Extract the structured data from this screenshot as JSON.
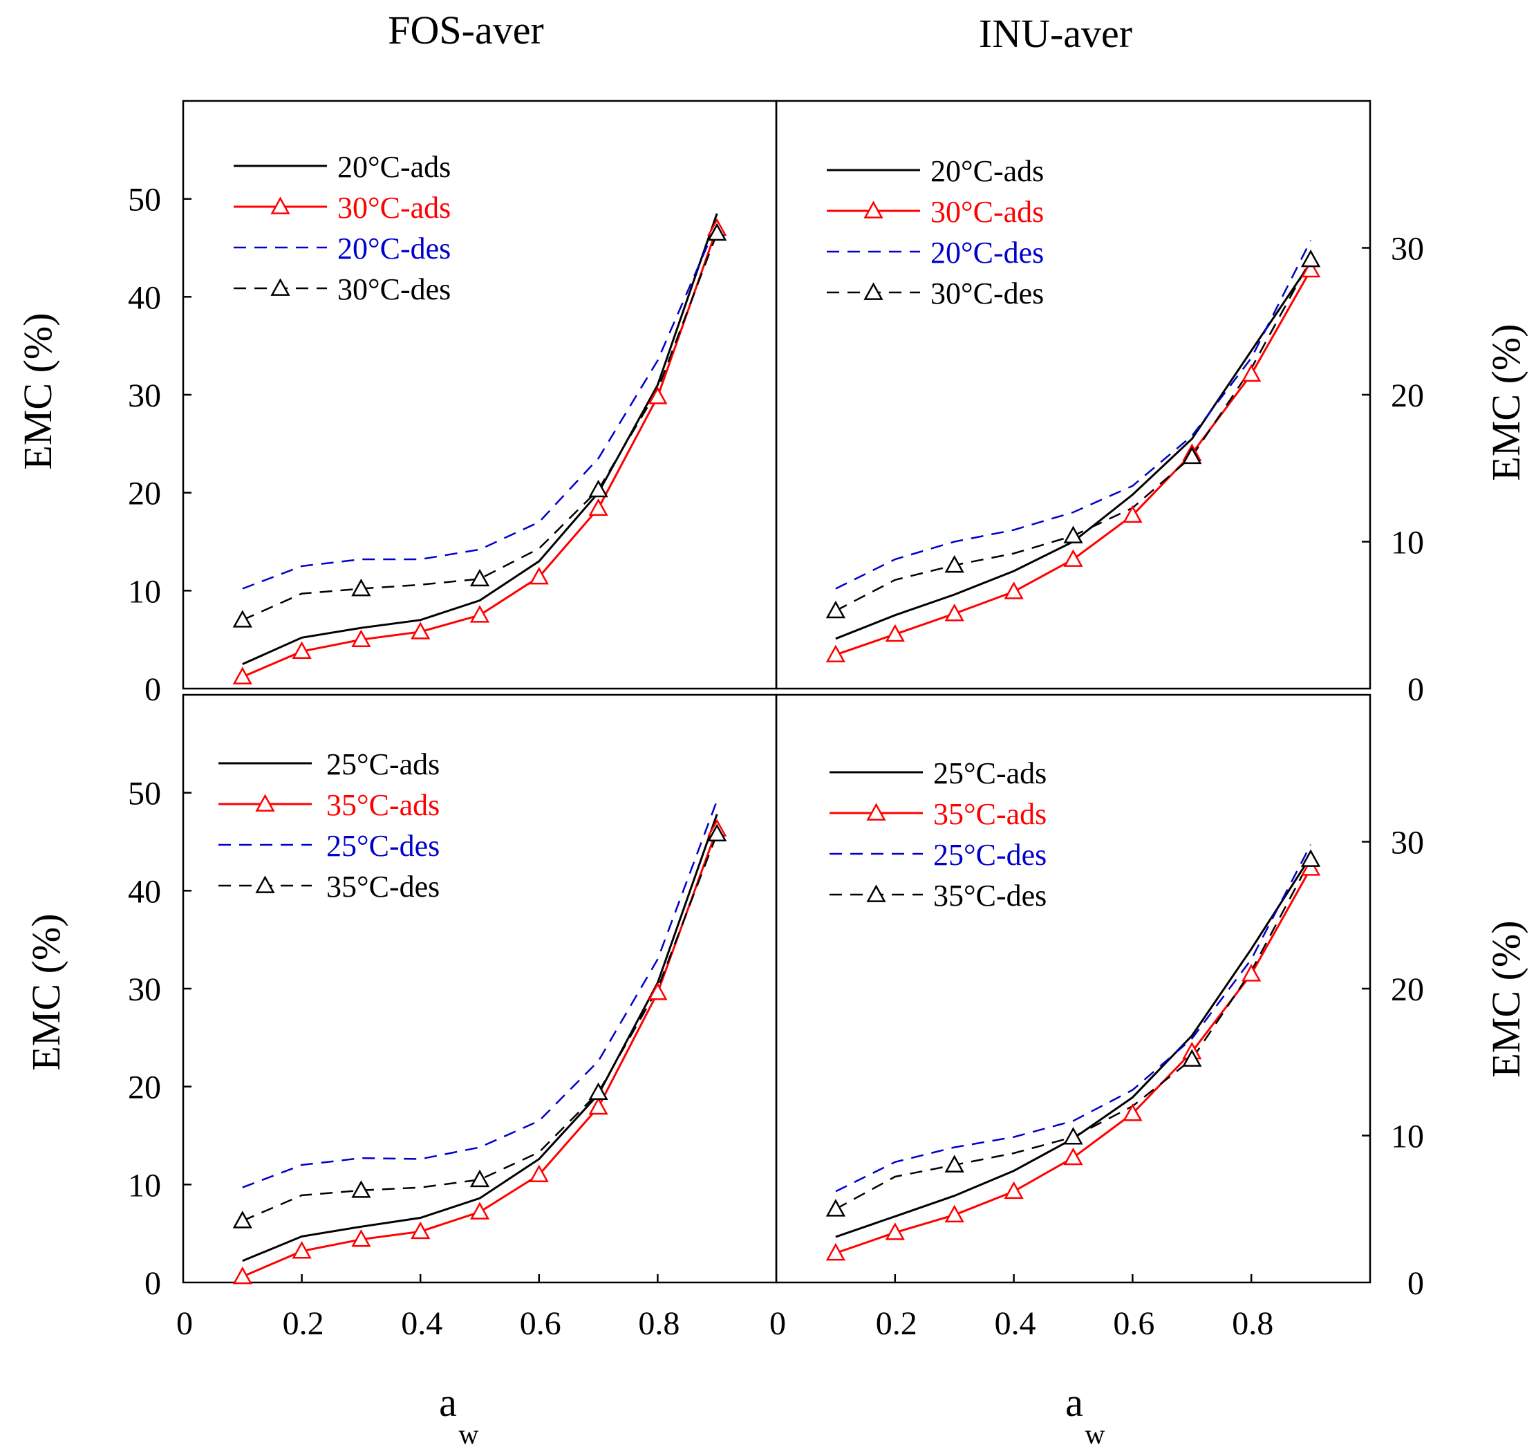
{
  "titles": {
    "left": "FOS-aver",
    "right": "INU-aver"
  },
  "axis": {
    "ylabel": "EMC (%)",
    "xlabel_main": "a",
    "xlabel_sub": "w",
    "x_ticks": [
      "0",
      "0.2",
      "0.4",
      "0.6",
      "0.8"
    ],
    "left_y_ticks": [
      "0",
      "10",
      "20",
      "30",
      "40",
      "50"
    ],
    "right_y_ticks": [
      "0",
      "10",
      "20",
      "30"
    ]
  },
  "colors": {
    "black": "#000000",
    "red": "#ff0000",
    "blue": "#0000cc"
  },
  "chart_data": [
    {
      "type": "line",
      "panel": "top-left",
      "title": "FOS-aver",
      "xlabel": "a_w",
      "ylabel": "EMC (%)",
      "xlim": [
        0,
        1
      ],
      "ylim": [
        0,
        60
      ],
      "x": [
        0.1,
        0.2,
        0.3,
        0.4,
        0.5,
        0.6,
        0.7,
        0.8,
        0.9
      ],
      "series": [
        {
          "name": "20°C-ads",
          "color": "#000000",
          "dash": "solid",
          "marker": "none",
          "values": [
            2.5,
            5.2,
            6.2,
            7.0,
            9.0,
            13.0,
            20.0,
            31.0,
            48.5
          ]
        },
        {
          "name": "30°C-ads",
          "color": "#ff0000",
          "dash": "solid",
          "marker": "triangle",
          "values": [
            1.2,
            3.8,
            5.0,
            5.8,
            7.5,
            11.4,
            18.4,
            29.8,
            47.0
          ]
        },
        {
          "name": "20°C-des",
          "color": "#0000cc",
          "dash": "dashed",
          "marker": "none",
          "values": [
            10.2,
            12.5,
            13.2,
            13.2,
            14.2,
            17.0,
            23.5,
            33.5,
            47.5
          ]
        },
        {
          "name": "30°C-des",
          "color": "#000000",
          "dash": "dashed",
          "marker": "triangle",
          "values": [
            7.0,
            9.7,
            10.2,
            10.6,
            11.2,
            14.3,
            20.3,
            30.5,
            46.5
          ]
        }
      ],
      "legend_position": "top-left"
    },
    {
      "type": "line",
      "panel": "top-right",
      "title": "INU-aver",
      "xlabel": "a_w",
      "ylabel": "EMC (%)",
      "xlim": [
        0,
        1
      ],
      "ylim": [
        0,
        40
      ],
      "x": [
        0.1,
        0.2,
        0.3,
        0.4,
        0.5,
        0.6,
        0.7,
        0.8,
        0.9
      ],
      "series": [
        {
          "name": "20°C-ads",
          "color": "#000000",
          "dash": "solid",
          "marker": "none",
          "values": [
            3.4,
            5.0,
            6.4,
            8.0,
            10.0,
            13.2,
            17.0,
            23.0,
            29.0
          ]
        },
        {
          "name": "30°C-ads",
          "color": "#ff0000",
          "dash": "solid",
          "marker": "triangle",
          "values": [
            2.3,
            3.7,
            5.1,
            6.6,
            8.8,
            11.8,
            16.0,
            21.4,
            28.5
          ]
        },
        {
          "name": "20°C-des",
          "color": "#0000cc",
          "dash": "dashed",
          "marker": "none",
          "values": [
            6.8,
            8.8,
            10.0,
            10.8,
            12.0,
            13.8,
            17.2,
            22.5,
            30.5
          ]
        },
        {
          "name": "30°C-des",
          "color": "#000000",
          "dash": "dashed",
          "marker": "triangle",
          "values": [
            5.3,
            7.4,
            8.4,
            9.2,
            10.4,
            12.3,
            15.8,
            21.8,
            29.2
          ]
        }
      ],
      "legend_position": "top-left"
    },
    {
      "type": "line",
      "panel": "bottom-left",
      "title": "",
      "xlabel": "a_w",
      "ylabel": "EMC (%)",
      "xlim": [
        0,
        1
      ],
      "ylim": [
        0,
        60
      ],
      "x": [
        0.1,
        0.2,
        0.3,
        0.4,
        0.5,
        0.6,
        0.7,
        0.8,
        0.9
      ],
      "series": [
        {
          "name": "25°C-ads",
          "color": "#000000",
          "dash": "solid",
          "marker": "none",
          "values": [
            2.2,
            4.7,
            5.7,
            6.6,
            8.6,
            12.6,
            19.2,
            30.6,
            47.8
          ]
        },
        {
          "name": "35°C-ads",
          "color": "#ff0000",
          "dash": "solid",
          "marker": "triangle",
          "values": [
            0.6,
            3.2,
            4.4,
            5.2,
            7.2,
            11.0,
            17.9,
            29.6,
            46.3
          ]
        },
        {
          "name": "25°C-des",
          "color": "#0000cc",
          "dash": "dashed",
          "marker": "none",
          "values": [
            9.7,
            12.0,
            12.7,
            12.6,
            13.8,
            16.5,
            22.6,
            33.0,
            49.2
          ]
        },
        {
          "name": "35°C-des",
          "color": "#000000",
          "dash": "dashed",
          "marker": "triangle",
          "values": [
            6.3,
            8.9,
            9.4,
            9.7,
            10.5,
            13.3,
            19.4,
            30.0,
            45.8
          ]
        }
      ],
      "legend_position": "top-left"
    },
    {
      "type": "line",
      "panel": "bottom-right",
      "title": "",
      "xlabel": "a_w",
      "ylabel": "EMC (%)",
      "xlim": [
        0,
        1
      ],
      "ylim": [
        0,
        40
      ],
      "x": [
        0.1,
        0.2,
        0.3,
        0.4,
        0.5,
        0.6,
        0.7,
        0.8,
        0.9
      ],
      "series": [
        {
          "name": "25°C-ads",
          "color": "#000000",
          "dash": "solid",
          "marker": "none",
          "values": [
            3.1,
            4.5,
            5.9,
            7.6,
            9.8,
            12.6,
            16.8,
            22.7,
            29.0
          ]
        },
        {
          "name": "35°C-ads",
          "color": "#ff0000",
          "dash": "solid",
          "marker": "triangle",
          "values": [
            2.0,
            3.4,
            4.6,
            6.2,
            8.5,
            11.5,
            15.7,
            21.0,
            28.2
          ]
        },
        {
          "name": "25°C-des",
          "color": "#0000cc",
          "dash": "dashed",
          "marker": "none",
          "values": [
            6.2,
            8.2,
            9.2,
            9.9,
            11.0,
            13.1,
            16.6,
            22.0,
            29.8
          ]
        },
        {
          "name": "35°C-des",
          "color": "#000000",
          "dash": "dashed",
          "marker": "triangle",
          "values": [
            5.0,
            7.2,
            8.0,
            8.8,
            9.9,
            12.0,
            15.2,
            21.2,
            28.8
          ]
        }
      ],
      "legend_position": "top-left"
    }
  ]
}
